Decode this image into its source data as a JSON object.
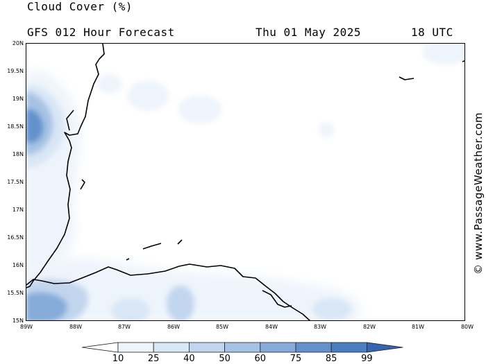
{
  "header": {
    "title": "Cloud Cover (%)",
    "subtitle": "GFS 012 Hour Forecast",
    "date": "Thu 01 May 2025",
    "time": "18 UTC"
  },
  "map": {
    "lat_labels": [
      "20N",
      "19.5N",
      "19N",
      "18.5N",
      "18N",
      "17.5N",
      "17N",
      "16.5N",
      "16N",
      "15.5N",
      "15N"
    ],
    "lon_labels": [
      "89W",
      "88W",
      "87W",
      "86W",
      "85W",
      "84W",
      "83W",
      "82W",
      "81W",
      "80W"
    ],
    "lat_range": [
      15,
      20
    ],
    "lon_range": [
      -89,
      -80
    ]
  },
  "watermark": "© www.PassageWeather.com",
  "legend": {
    "labels": [
      "10",
      "25",
      "40",
      "50",
      "60",
      "75",
      "85",
      "99"
    ],
    "colors": [
      "#ffffff",
      "#eef4fb",
      "#d9e6f5",
      "#c2d5ee",
      "#a6c2e4",
      "#86abd9",
      "#6391cc",
      "#4a7cc0",
      "#3565b0"
    ]
  }
}
